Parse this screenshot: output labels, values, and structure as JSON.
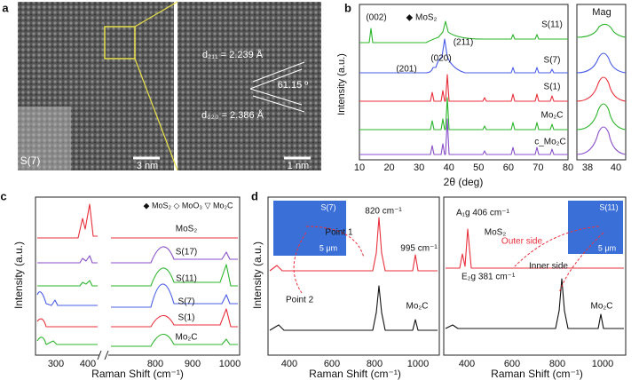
{
  "panels": {
    "a": {
      "label": "a",
      "sample": "S(7)",
      "scale_left": "3 nm",
      "scale_right": "1 nm",
      "d211": "d₂₁₁ = 2.239 Å",
      "angle": "61.15 º",
      "d020": "d₀₂₀ = 2.386 Å"
    },
    "b": {
      "label": "b",
      "y_label": "Intensity (a.u.)",
      "x_label": "2θ (deg)",
      "x_ticks": [
        "10",
        "20",
        "30",
        "40",
        "50",
        "60",
        "70",
        "80"
      ],
      "mag_title": "Mag",
      "mag_ticks": [
        "38",
        "40"
      ],
      "annotations": [
        "(002)",
        "◆ MoS₂",
        "(211)",
        "(020)",
        "(201)"
      ],
      "series": [
        "S(11)",
        "S(7)",
        "S(1)",
        "Mo₂C",
        "c_Mo₂C"
      ]
    },
    "c": {
      "label": "c",
      "legend": "◆ MoS₂ ◇ MoO₃ ▽ Mo₂C",
      "series": [
        "MoS₂",
        "S(17)",
        "S(11)",
        "S(7)",
        "S(1)",
        "Mo₂C"
      ],
      "y_label": "Intensity (a.u.)",
      "x_label": "Raman Shift (cm⁻¹)",
      "x_ticks": [
        "300",
        "400",
        "800",
        "900",
        "1000"
      ]
    },
    "d": {
      "label": "d",
      "y_label": "Intensity (a.u.)",
      "left": {
        "inset_sample": "S(7)",
        "inset_scale": "5 μm",
        "peak1": "820 cm⁻¹",
        "peak2": "995 cm⁻¹",
        "point1": "Point 1",
        "point2": "Point 2",
        "curve": "Mo₂C",
        "x_ticks": [
          "400",
          "600",
          "800",
          "1000"
        ],
        "x_label": "Raman Shift (cm⁻¹)"
      },
      "right": {
        "inset_sample": "S(11)",
        "inset_scale": "5 μm",
        "a1g": "A₁g 406 cm⁻¹",
        "mos2": "MoS₂",
        "e2g": "E₂g 381 cm⁻¹",
        "outer": "Outer side",
        "inner": "Inner side",
        "curve": "Mo₂C",
        "x_ticks": [
          "400",
          "600",
          "800",
          "1000"
        ],
        "x_label": "Raman Shift (cm⁻¹)"
      }
    }
  }
}
